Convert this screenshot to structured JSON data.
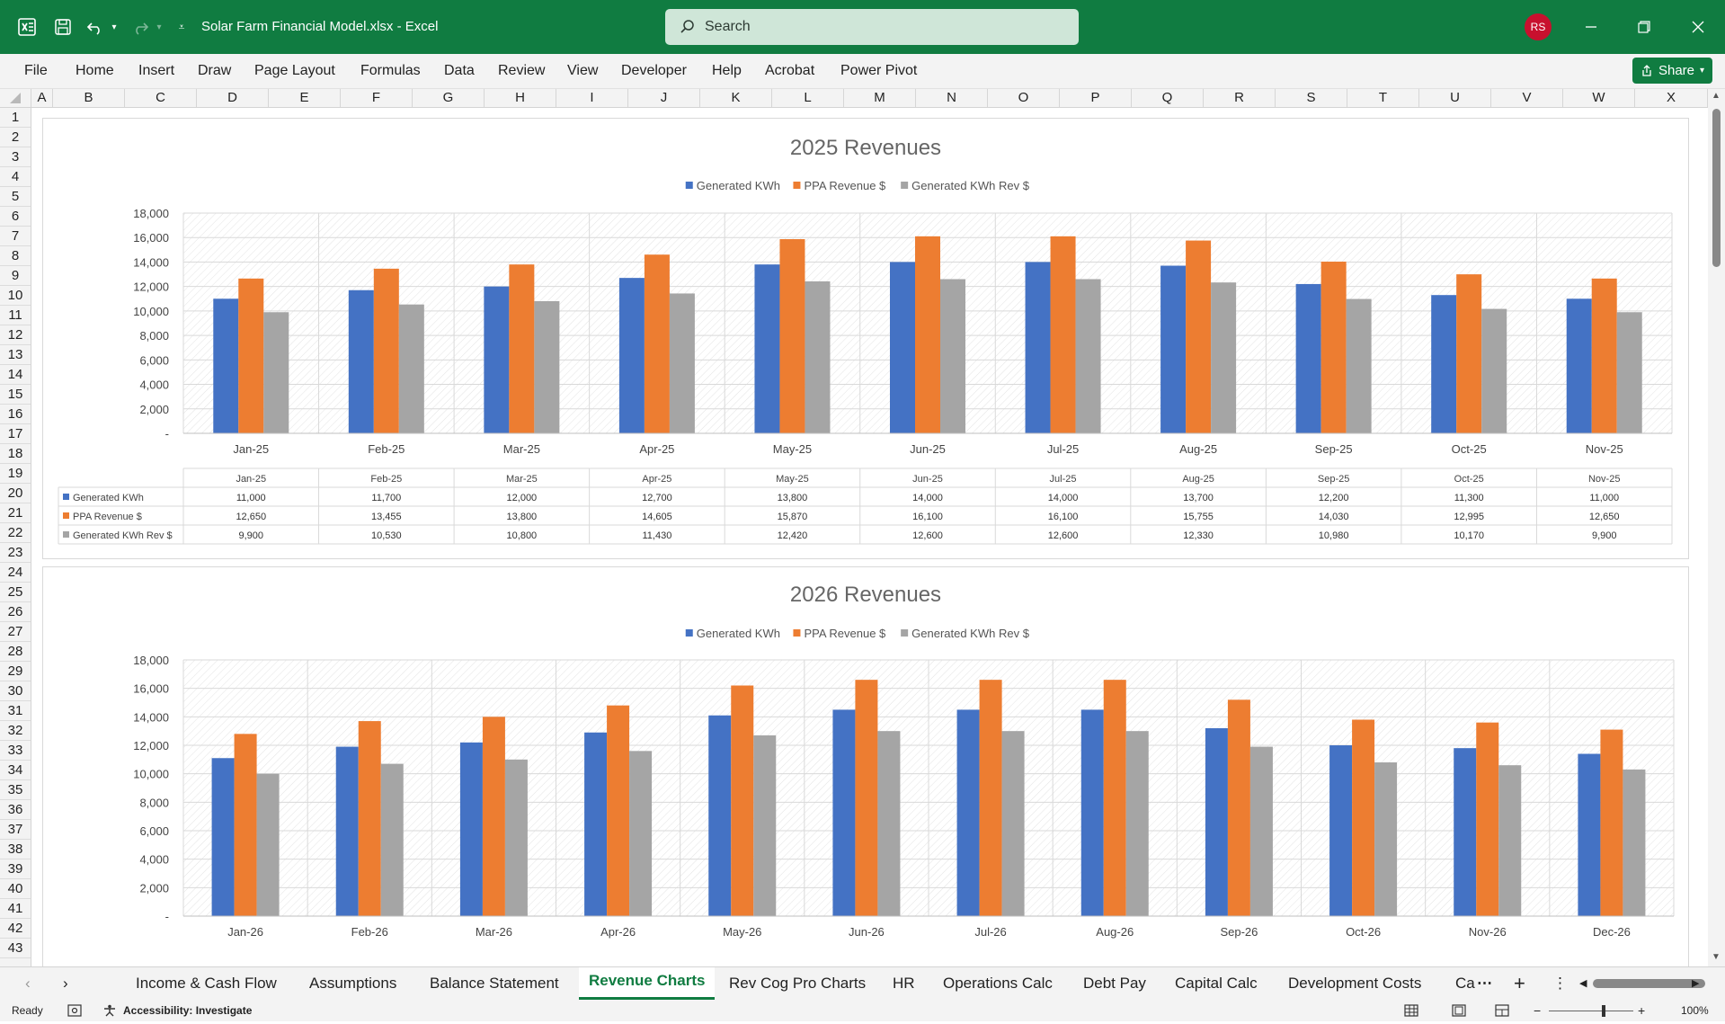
{
  "window": {
    "file_title": "Solar Farm Financial Model.xlsx  -  Excel",
    "search_placeholder": "Search",
    "user_initials": "RS"
  },
  "ribbon": {
    "tabs": [
      "File",
      "Home",
      "Insert",
      "Draw",
      "Page Layout",
      "Formulas",
      "Data",
      "Review",
      "View",
      "Developer",
      "Help",
      "Acrobat",
      "Power Pivot"
    ],
    "share_label": "Share"
  },
  "grid": {
    "columns": [
      "A",
      "B",
      "C",
      "D",
      "E",
      "F",
      "G",
      "H",
      "I",
      "J",
      "K",
      "L",
      "M",
      "N",
      "O",
      "P",
      "Q",
      "R",
      "S",
      "T",
      "U",
      "V",
      "W",
      "X"
    ],
    "rows": [
      "1",
      "2",
      "3",
      "4",
      "5",
      "6",
      "7",
      "8",
      "9",
      "10",
      "11",
      "12",
      "13",
      "14",
      "15",
      "16",
      "17",
      "18",
      "19",
      "20",
      "21",
      "22",
      "23",
      "24",
      "25",
      "26",
      "27",
      "28",
      "29",
      "30",
      "31",
      "32",
      "33",
      "34",
      "35",
      "36",
      "37",
      "38",
      "39",
      "40",
      "41",
      "42",
      "43"
    ]
  },
  "sheet_tabs": {
    "items": [
      "Income & Cash Flow",
      "Assumptions",
      "Balance Statement",
      "Revenue Charts",
      "Rev Cog Pro Charts",
      "HR",
      "Operations Calc",
      "Debt Pay",
      "Capital Calc",
      "Development Costs",
      "Ca"
    ],
    "active": "Revenue Charts"
  },
  "status": {
    "ready": "Ready",
    "accessibility": "Accessibility: Investigate",
    "zoom": "100%"
  },
  "colors": {
    "excel_green": "#107c41",
    "series_blue": "#4472c4",
    "series_orange": "#ed7d31",
    "series_gray": "#a5a5a5"
  },
  "chart_data": [
    {
      "type": "bar",
      "title": "2025 Revenues",
      "categories": [
        "Jan-25",
        "Feb-25",
        "Mar-25",
        "Apr-25",
        "May-25",
        "Jun-25",
        "Jul-25",
        "Aug-25",
        "Sep-25",
        "Oct-25",
        "Nov-25"
      ],
      "series": [
        {
          "name": "Generated KWh",
          "color": "#4472c4",
          "values": [
            11000,
            11700,
            12000,
            12700,
            13800,
            14000,
            14000,
            13700,
            12200,
            11300,
            11000
          ],
          "labels": [
            "11,000",
            "11,700",
            "12,000",
            "12,700",
            "13,800",
            "14,000",
            "14,000",
            "13,700",
            "12,200",
            "11,300",
            "11,000"
          ]
        },
        {
          "name": "PPA Revenue $",
          "color": "#ed7d31",
          "values": [
            12650,
            13455,
            13800,
            14605,
            15870,
            16100,
            16100,
            15755,
            14030,
            12995,
            12650
          ],
          "labels": [
            "12,650",
            "13,455",
            "13,800",
            "14,605",
            "15,870",
            "16,100",
            "16,100",
            "15,755",
            "14,030",
            "12,995",
            "12,650"
          ]
        },
        {
          "name": "Generated KWh Rev $",
          "color": "#a5a5a5",
          "values": [
            9900,
            10530,
            10800,
            11430,
            12420,
            12600,
            12600,
            12330,
            10980,
            10170,
            9900
          ],
          "labels": [
            "9,900",
            "10,530",
            "10,800",
            "11,430",
            "12,420",
            "12,600",
            "12,600",
            "12,330",
            "10,980",
            "10,170",
            "9,900"
          ]
        }
      ],
      "ylim": [
        0,
        18000
      ],
      "yticks": [
        "-",
        "2,000",
        "4,000",
        "6,000",
        "8,000",
        "10,000",
        "12,000",
        "14,000",
        "16,000",
        "18,000"
      ],
      "legend": "top",
      "grid": true,
      "data_table": true
    },
    {
      "type": "bar",
      "title": "2026 Revenues",
      "categories": [
        "Jan-26",
        "Feb-26",
        "Mar-26",
        "Apr-26",
        "May-26",
        "Jun-26",
        "Jul-26",
        "Aug-26",
        "Sep-26",
        "Oct-26",
        "Nov-26",
        "Dec-26"
      ],
      "series": [
        {
          "name": "Generated KWh",
          "color": "#4472c4",
          "values": [
            11100,
            11900,
            12200,
            12900,
            14100,
            14500,
            14500,
            14500,
            13200,
            12000,
            11800,
            11400
          ]
        },
        {
          "name": "PPA Revenue $",
          "color": "#ed7d31",
          "values": [
            12800,
            13700,
            14000,
            14800,
            16200,
            16600,
            16600,
            16600,
            15200,
            13800,
            13600,
            13100
          ]
        },
        {
          "name": "Generated KWh Rev $",
          "color": "#a5a5a5",
          "values": [
            10000,
            10700,
            11000,
            11600,
            12700,
            13000,
            13000,
            13000,
            11900,
            10800,
            10600,
            10300
          ]
        }
      ],
      "ylim": [
        0,
        18000
      ],
      "yticks": [
        "-",
        "2,000",
        "4,000",
        "6,000",
        "8,000",
        "10,000",
        "12,000",
        "14,000",
        "16,000",
        "18,000"
      ],
      "legend": "top",
      "grid": true
    }
  ]
}
